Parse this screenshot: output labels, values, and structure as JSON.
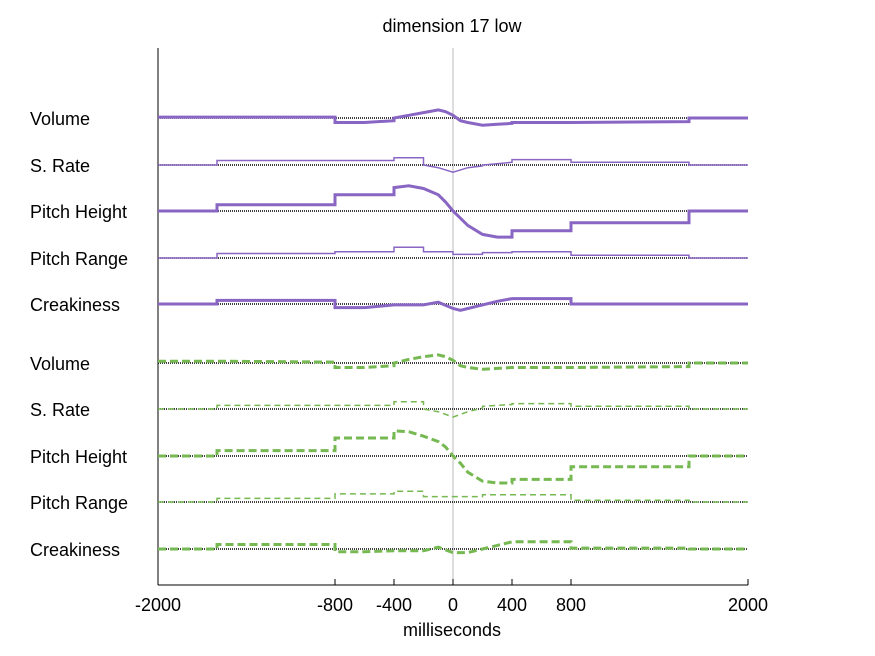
{
  "chart_data": {
    "type": "line",
    "title": "dimension 17 low",
    "xlabel": "milliseconds",
    "ylabel": "",
    "xlim": [
      -2000,
      2000
    ],
    "x_ticks": [
      -2000,
      -800,
      -400,
      0,
      400,
      800,
      2000
    ],
    "x_tick_labels": [
      "-2000",
      "-800",
      "-400",
      "0",
      "400",
      "800",
      "2000"
    ],
    "grid": false,
    "zero_line": true,
    "y_unit_note": "offsets relative to each row baseline (positive = above)",
    "colors": {
      "purple": "#8a66c4",
      "green": "#76b852",
      "baseline": "#000000",
      "zero": "#bbbbbb"
    },
    "series": [
      {
        "name": "Volume",
        "group": "purple",
        "style": "solid",
        "weight": "thick",
        "points": [
          [
            -2000,
            1
          ],
          [
            -1600,
            1
          ],
          [
            -800,
            1
          ],
          [
            -800,
            -5
          ],
          [
            -600,
            -5
          ],
          [
            -400,
            -3
          ],
          [
            -400,
            0
          ],
          [
            -300,
            3
          ],
          [
            -200,
            6
          ],
          [
            -100,
            9
          ],
          [
            -50,
            7
          ],
          [
            0,
            3
          ],
          [
            50,
            -3
          ],
          [
            100,
            -5
          ],
          [
            200,
            -8
          ],
          [
            300,
            -7
          ],
          [
            400,
            -6
          ],
          [
            400,
            -5
          ],
          [
            800,
            -5
          ],
          [
            1600,
            -4
          ],
          [
            1600,
            0
          ],
          [
            2000,
            0
          ]
        ]
      },
      {
        "name": "S. Rate",
        "group": "purple",
        "style": "solid",
        "weight": "thin",
        "points": [
          [
            -2000,
            0
          ],
          [
            -1600,
            0
          ],
          [
            -1600,
            5
          ],
          [
            -400,
            5
          ],
          [
            -400,
            8
          ],
          [
            -200,
            8
          ],
          [
            -200,
            0
          ],
          [
            -100,
            -3
          ],
          [
            0,
            -8
          ],
          [
            100,
            -3
          ],
          [
            200,
            -1
          ],
          [
            200,
            0
          ],
          [
            400,
            3
          ],
          [
            400,
            6
          ],
          [
            800,
            6
          ],
          [
            800,
            3
          ],
          [
            1600,
            3
          ],
          [
            1600,
            0
          ],
          [
            2000,
            0
          ]
        ]
      },
      {
        "name": "Pitch Height",
        "group": "purple",
        "style": "solid",
        "weight": "thick",
        "points": [
          [
            -2000,
            0
          ],
          [
            -1600,
            0
          ],
          [
            -1600,
            7
          ],
          [
            -800,
            7
          ],
          [
            -800,
            18
          ],
          [
            -400,
            18
          ],
          [
            -400,
            26
          ],
          [
            -300,
            28
          ],
          [
            -200,
            25
          ],
          [
            -100,
            18
          ],
          [
            -50,
            10
          ],
          [
            0,
            0
          ],
          [
            50,
            -8
          ],
          [
            100,
            -16
          ],
          [
            200,
            -26
          ],
          [
            300,
            -29
          ],
          [
            400,
            -29
          ],
          [
            400,
            -22
          ],
          [
            800,
            -22
          ],
          [
            800,
            -13
          ],
          [
            1600,
            -13
          ],
          [
            1600,
            0
          ],
          [
            2000,
            0
          ]
        ]
      },
      {
        "name": "Pitch Range",
        "group": "purple",
        "style": "solid",
        "weight": "thin",
        "points": [
          [
            -2000,
            0
          ],
          [
            -1600,
            0
          ],
          [
            -1600,
            5
          ],
          [
            -800,
            5
          ],
          [
            -800,
            7
          ],
          [
            -400,
            7
          ],
          [
            -400,
            12
          ],
          [
            -200,
            12
          ],
          [
            -200,
            7
          ],
          [
            0,
            7
          ],
          [
            0,
            4
          ],
          [
            200,
            4
          ],
          [
            200,
            6
          ],
          [
            400,
            6
          ],
          [
            400,
            7
          ],
          [
            800,
            7
          ],
          [
            800,
            3
          ],
          [
            1600,
            3
          ],
          [
            1600,
            0
          ],
          [
            2000,
            0
          ]
        ]
      },
      {
        "name": "Creakiness",
        "group": "purple",
        "style": "solid",
        "weight": "thick",
        "points": [
          [
            -2000,
            0
          ],
          [
            -1600,
            0
          ],
          [
            -1600,
            4
          ],
          [
            -800,
            4
          ],
          [
            -800,
            -4
          ],
          [
            -600,
            -4
          ],
          [
            -400,
            -1
          ],
          [
            -200,
            -1
          ],
          [
            -100,
            2
          ],
          [
            0,
            -5
          ],
          [
            50,
            -7
          ],
          [
            100,
            -5
          ],
          [
            200,
            -1
          ],
          [
            300,
            3
          ],
          [
            400,
            6
          ],
          [
            800,
            6
          ],
          [
            800,
            0
          ],
          [
            1600,
            0
          ],
          [
            2000,
            0
          ]
        ]
      },
      {
        "name": "Volume",
        "group": "green",
        "style": "dashed",
        "weight": "thick",
        "points": [
          [
            -2000,
            2
          ],
          [
            -1600,
            2
          ],
          [
            -800,
            1
          ],
          [
            -800,
            -5
          ],
          [
            -600,
            -5
          ],
          [
            -400,
            -3
          ],
          [
            -400,
            0
          ],
          [
            -300,
            4
          ],
          [
            -200,
            7
          ],
          [
            -100,
            9
          ],
          [
            -50,
            7
          ],
          [
            0,
            3
          ],
          [
            50,
            -3
          ],
          [
            100,
            -5
          ],
          [
            200,
            -7
          ],
          [
            300,
            -6
          ],
          [
            400,
            -5
          ],
          [
            800,
            -5
          ],
          [
            1600,
            -4
          ],
          [
            1600,
            0
          ],
          [
            2000,
            0
          ]
        ]
      },
      {
        "name": "S. Rate",
        "group": "green",
        "style": "dashed",
        "weight": "thin",
        "points": [
          [
            -2000,
            0
          ],
          [
            -1600,
            0
          ],
          [
            -1600,
            4
          ],
          [
            -400,
            4
          ],
          [
            -400,
            8
          ],
          [
            -200,
            8
          ],
          [
            -200,
            0
          ],
          [
            -100,
            -3
          ],
          [
            0,
            -9
          ],
          [
            100,
            -3
          ],
          [
            200,
            1
          ],
          [
            200,
            3
          ],
          [
            400,
            5
          ],
          [
            400,
            6
          ],
          [
            800,
            6
          ],
          [
            800,
            3
          ],
          [
            1600,
            3
          ],
          [
            1600,
            0
          ],
          [
            2000,
            0
          ]
        ]
      },
      {
        "name": "Pitch Height",
        "group": "green",
        "style": "dashed",
        "weight": "thick",
        "points": [
          [
            -2000,
            0
          ],
          [
            -1600,
            0
          ],
          [
            -1600,
            6
          ],
          [
            -800,
            6
          ],
          [
            -800,
            20
          ],
          [
            -400,
            20
          ],
          [
            -400,
            28
          ],
          [
            -300,
            27
          ],
          [
            -200,
            22
          ],
          [
            -100,
            16
          ],
          [
            -50,
            10
          ],
          [
            0,
            0
          ],
          [
            50,
            -8
          ],
          [
            100,
            -18
          ],
          [
            200,
            -28
          ],
          [
            300,
            -30
          ],
          [
            400,
            -30
          ],
          [
            400,
            -26
          ],
          [
            800,
            -26
          ],
          [
            800,
            -12
          ],
          [
            1600,
            -12
          ],
          [
            1600,
            0
          ],
          [
            2000,
            0
          ]
        ]
      },
      {
        "name": "Pitch Range",
        "group": "green",
        "style": "dashed",
        "weight": "thin",
        "points": [
          [
            -2000,
            0
          ],
          [
            -1600,
            0
          ],
          [
            -1600,
            4
          ],
          [
            -800,
            4
          ],
          [
            -800,
            9
          ],
          [
            -400,
            9
          ],
          [
            -400,
            12
          ],
          [
            -200,
            12
          ],
          [
            -200,
            6
          ],
          [
            0,
            6
          ],
          [
            200,
            6
          ],
          [
            200,
            8
          ],
          [
            400,
            8
          ],
          [
            800,
            8
          ],
          [
            800,
            2
          ],
          [
            1600,
            2
          ],
          [
            1600,
            0
          ],
          [
            2000,
            0
          ]
        ]
      },
      {
        "name": "Creakiness",
        "group": "green",
        "style": "dashed",
        "weight": "thick",
        "points": [
          [
            -2000,
            0
          ],
          [
            -1600,
            0
          ],
          [
            -1600,
            5
          ],
          [
            -800,
            5
          ],
          [
            -800,
            -3
          ],
          [
            -600,
            -3
          ],
          [
            -400,
            -2
          ],
          [
            -200,
            -2
          ],
          [
            -100,
            2
          ],
          [
            0,
            -4
          ],
          [
            100,
            -4
          ],
          [
            200,
            0
          ],
          [
            300,
            4
          ],
          [
            400,
            8
          ],
          [
            800,
            8
          ],
          [
            800,
            1
          ],
          [
            1600,
            1
          ],
          [
            1600,
            0
          ],
          [
            2000,
            0
          ]
        ]
      }
    ]
  }
}
